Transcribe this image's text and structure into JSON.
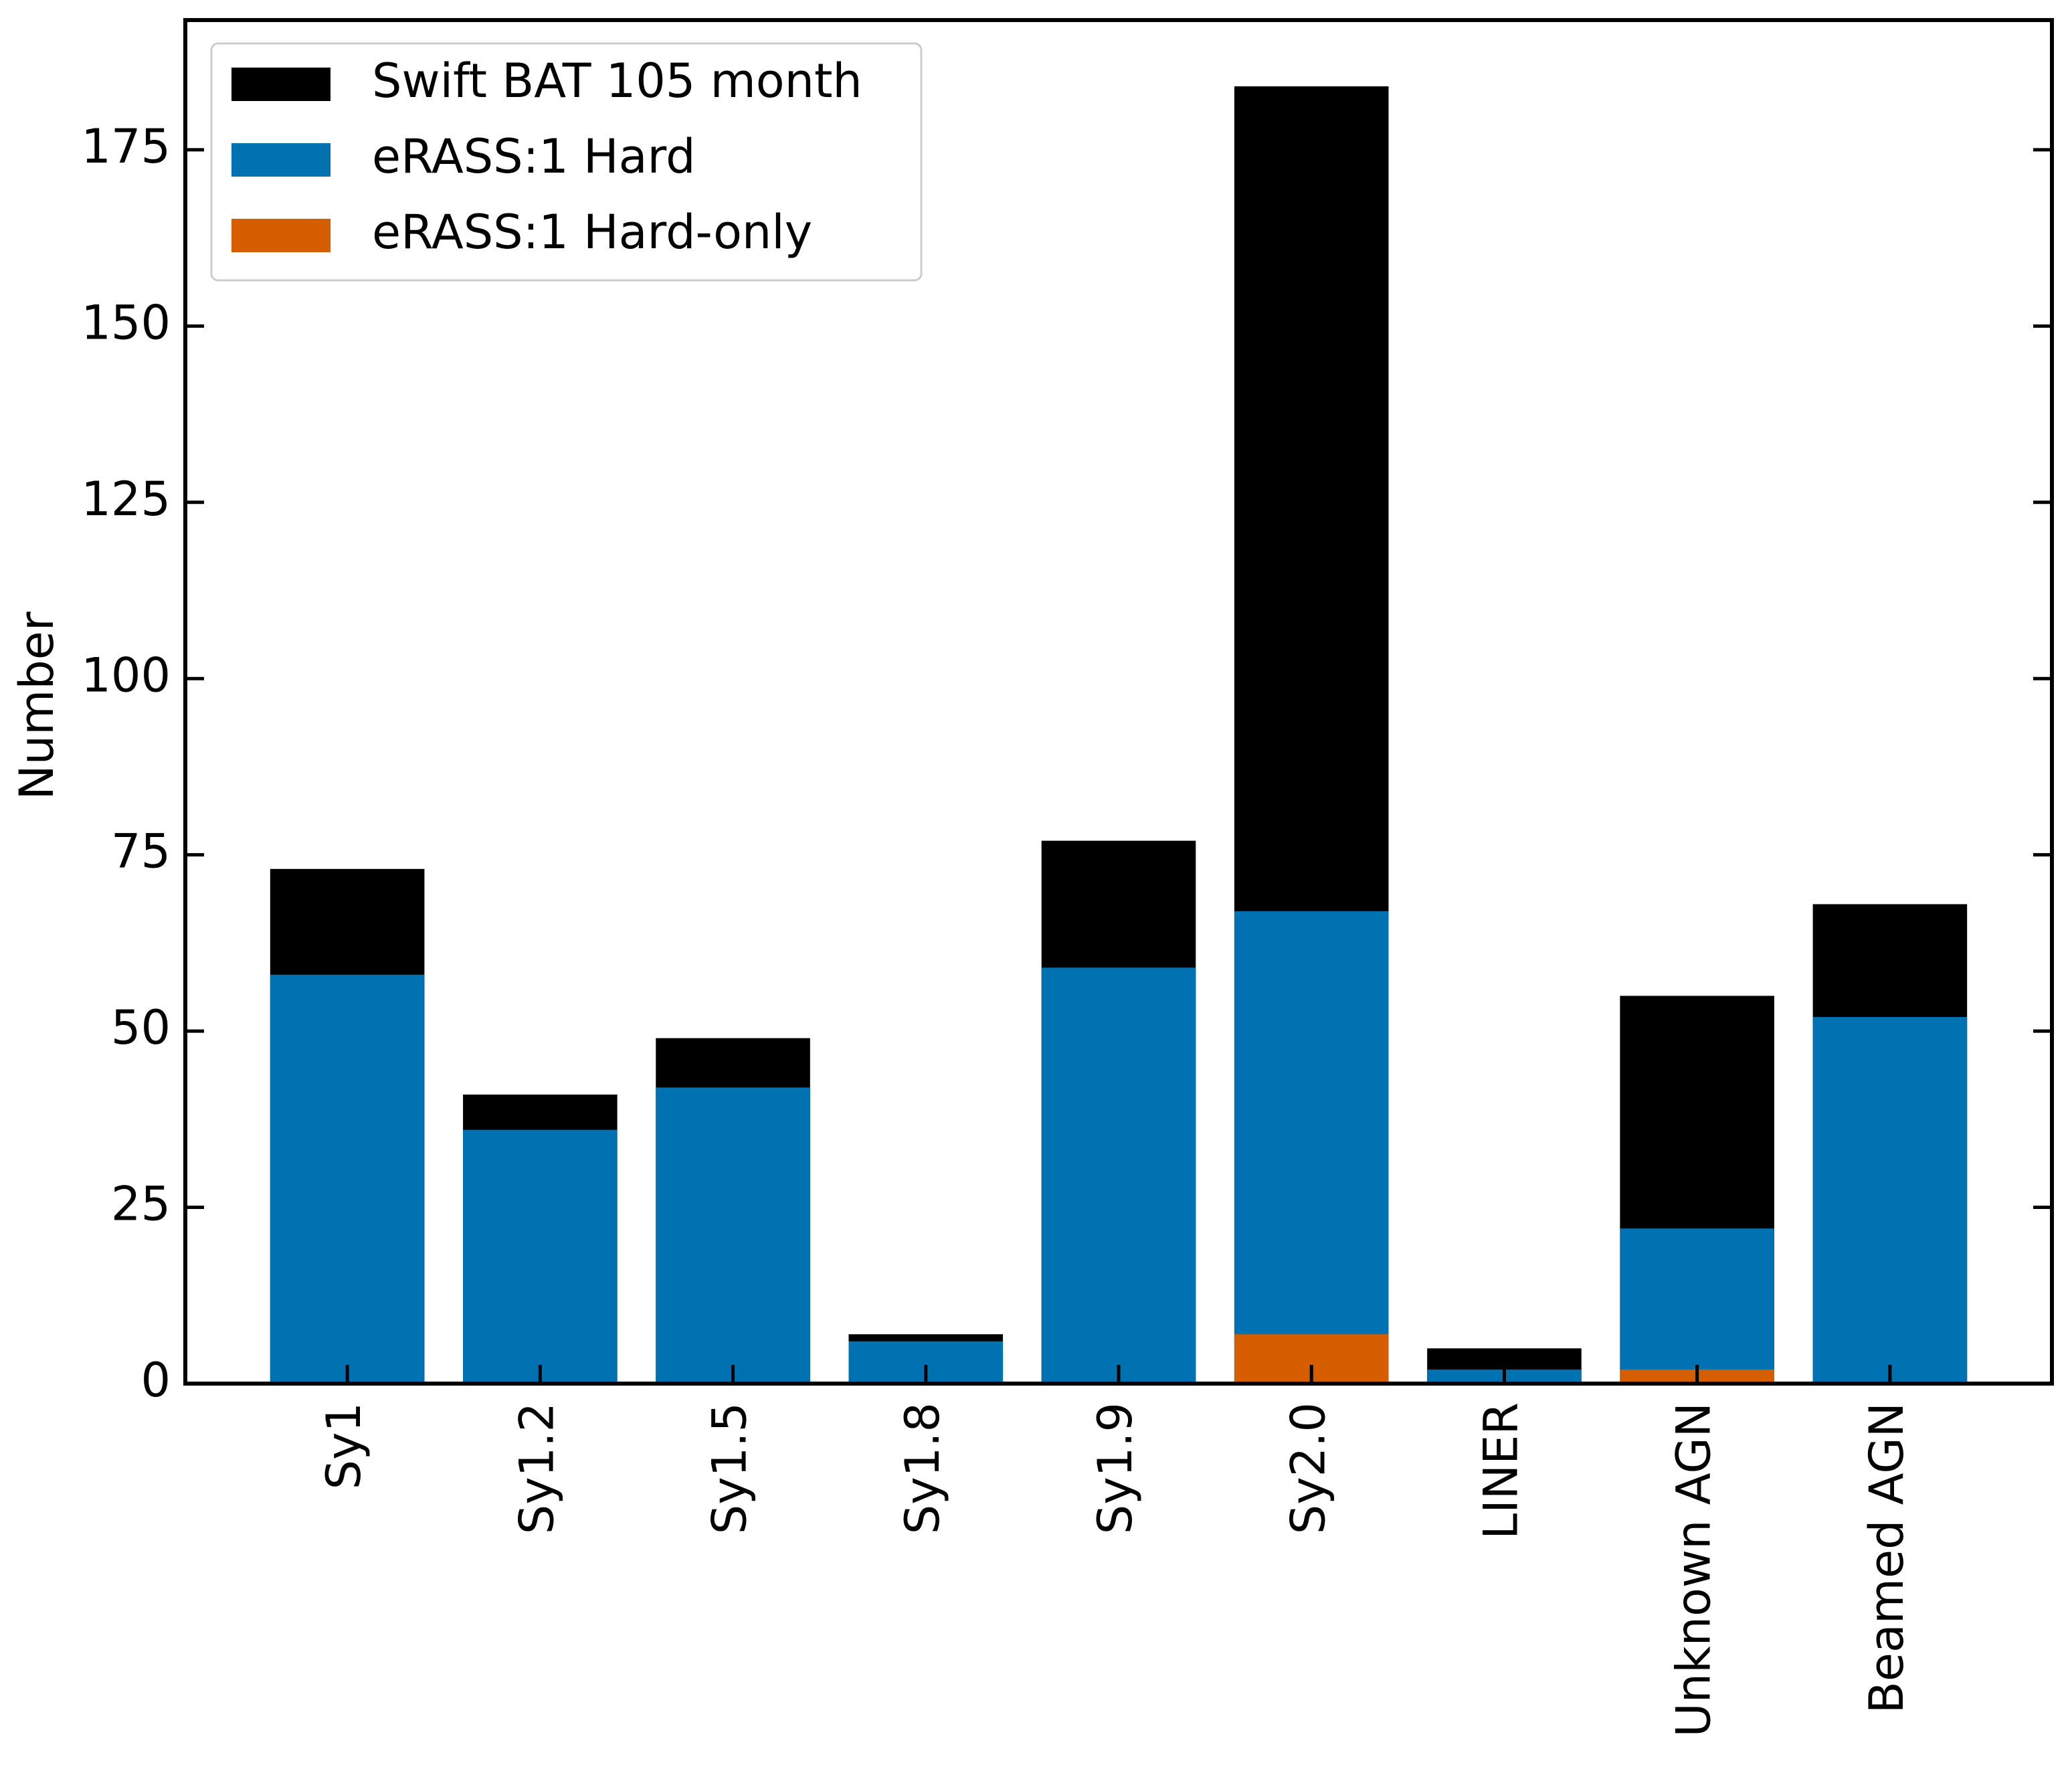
{
  "chart_data": {
    "type": "bar",
    "ylabel": "Number",
    "categories": [
      "Sy1",
      "Sy1.2",
      "Sy1.5",
      "Sy1.8",
      "Sy1.9",
      "Sy2.0",
      "LINER",
      "Unknown AGN",
      "Beamed AGN"
    ],
    "series": [
      {
        "name": "Swift BAT 105 month",
        "color": "#000000",
        "values": [
          73,
          41,
          49,
          7,
          77,
          184,
          5,
          55,
          68
        ]
      },
      {
        "name": "eRASS:1 Hard",
        "color": "#0072b2",
        "values": [
          58,
          36,
          42,
          6,
          59,
          67,
          2,
          22,
          52
        ]
      },
      {
        "name": "eRASS:1 Hard-only",
        "color": "#d55e00",
        "values": [
          0,
          0,
          0,
          0,
          0,
          7,
          0,
          2,
          0
        ]
      }
    ],
    "ylim": [
      0,
      193.4
    ],
    "yticks": [
      0,
      25,
      50,
      75,
      100,
      125,
      150,
      175
    ],
    "legend": "upper left"
  }
}
